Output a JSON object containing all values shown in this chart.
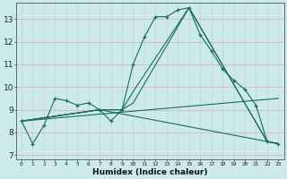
{
  "xlabel": "Humidex (Indice chaleur)",
  "bg_color": "#cceaea",
  "grid_color": "#b8b8c8",
  "line_color": "#1a6b5a",
  "xlim": [
    -0.5,
    23.5
  ],
  "ylim": [
    6.8,
    13.7
  ],
  "yticks": [
    7,
    8,
    9,
    10,
    11,
    12,
    13
  ],
  "xticks": [
    0,
    1,
    2,
    3,
    4,
    5,
    6,
    7,
    8,
    9,
    10,
    11,
    12,
    13,
    14,
    15,
    16,
    17,
    18,
    19,
    20,
    21,
    22,
    23
  ],
  "line1_x": [
    0,
    1,
    2,
    3,
    4,
    5,
    6,
    7,
    8,
    9,
    10,
    11,
    12,
    13,
    14,
    15,
    16,
    17,
    18,
    19,
    20,
    21,
    22,
    23
  ],
  "line1_y": [
    8.5,
    7.5,
    8.3,
    9.5,
    9.4,
    9.2,
    9.3,
    9.0,
    8.5,
    9.0,
    11.0,
    12.2,
    13.1,
    13.1,
    13.4,
    13.5,
    12.3,
    11.6,
    10.8,
    10.3,
    9.9,
    9.2,
    7.6,
    7.5
  ],
  "line2_x": [
    0,
    7,
    9,
    10,
    15,
    22,
    23
  ],
  "line2_y": [
    8.5,
    9.0,
    9.0,
    9.8,
    13.5,
    7.6,
    7.5
  ],
  "line3_x": [
    0,
    7,
    9,
    10,
    15,
    22,
    23
  ],
  "line3_y": [
    8.5,
    9.0,
    9.0,
    9.3,
    13.5,
    7.6,
    7.5
  ],
  "line4_x": [
    0,
    7,
    22,
    23
  ],
  "line4_y": [
    8.5,
    9.0,
    7.6,
    7.5
  ],
  "line5_x": [
    0,
    23
  ],
  "line5_y": [
    8.5,
    9.5
  ]
}
